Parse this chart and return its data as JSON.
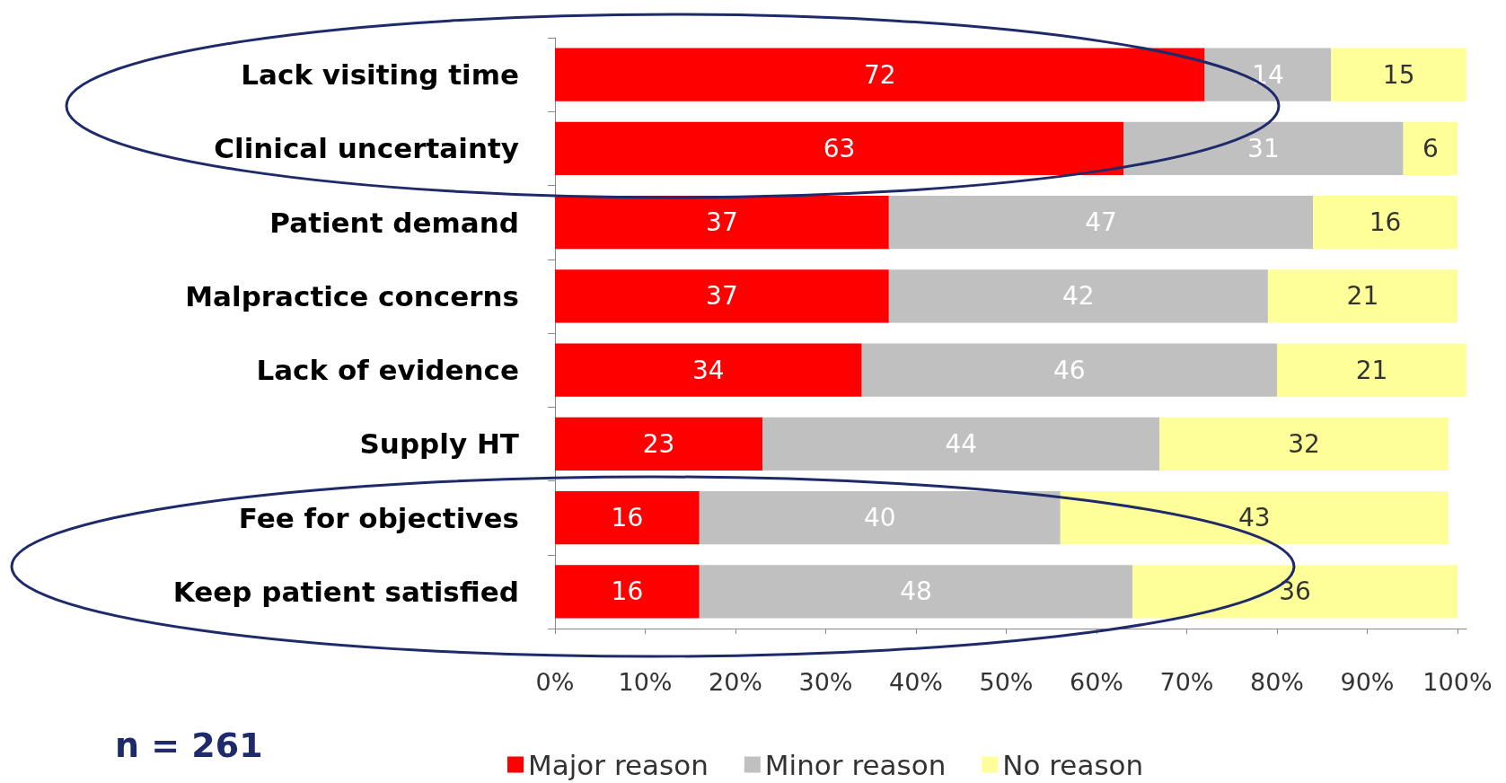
{
  "chart_data": {
    "type": "bar",
    "orientation": "horizontal",
    "stacked": true,
    "categories": [
      "Lack visiting time",
      "Clinical uncertainty",
      "Patient demand",
      "Malpractice concerns",
      "Lack of evidence",
      "Supply HT",
      "Fee for objectives",
      "Keep patient satisfied"
    ],
    "series": [
      {
        "name": "Major reason",
        "color": "#ff0000",
        "values": [
          72,
          63,
          37,
          37,
          34,
          23,
          16,
          16
        ]
      },
      {
        "name": "Minor reason",
        "color": "#c0c0c0",
        "values": [
          14,
          31,
          47,
          42,
          46,
          44,
          40,
          48
        ]
      },
      {
        "name": "No reason",
        "color": "#ffff99",
        "values": [
          15,
          6,
          16,
          21,
          21,
          32,
          43,
          36
        ]
      }
    ],
    "xlim": [
      0,
      101
    ],
    "xticks": [
      {
        "value": 0,
        "label": "0%"
      },
      {
        "value": 10,
        "label": "10%"
      },
      {
        "value": 20,
        "label": "20%"
      },
      {
        "value": 30,
        "label": "30%"
      },
      {
        "value": 40,
        "label": "40%"
      },
      {
        "value": 50,
        "label": "50%"
      },
      {
        "value": 60,
        "label": "60%"
      },
      {
        "value": 70,
        "label": "70%"
      },
      {
        "value": 80,
        "label": "80%"
      },
      {
        "value": 90,
        "label": "90%"
      },
      {
        "value": 100,
        "label": "100%"
      }
    ],
    "data_labels": true,
    "grid": false,
    "legend": "bottom",
    "annotations": [
      "n = 261"
    ]
  }
}
